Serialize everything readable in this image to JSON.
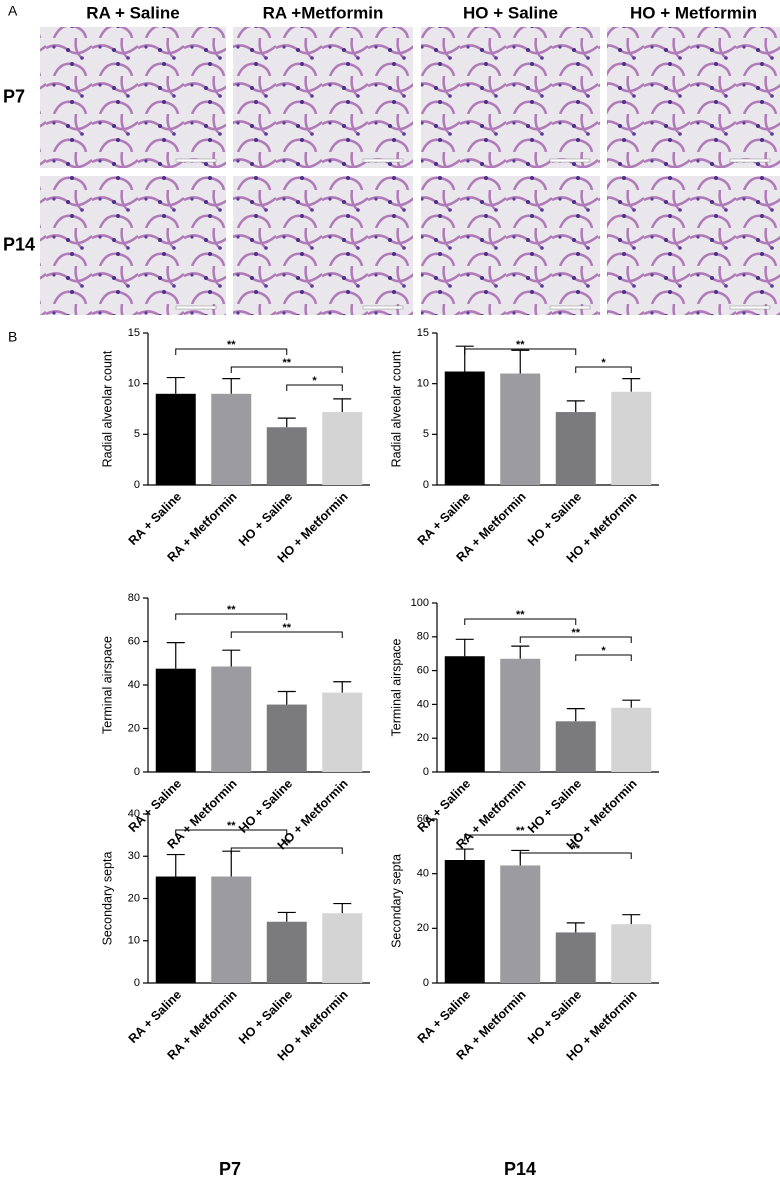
{
  "panel_a": {
    "label": "A",
    "columns": [
      "RA + Saline",
      "RA +Metformin",
      "HO + Saline",
      "HO + Metformin"
    ],
    "rows": [
      "P7",
      "P14"
    ]
  },
  "panel_b": {
    "label": "B",
    "column_labels": [
      "P7",
      "P14"
    ]
  },
  "chart_data": [
    {
      "type": "bar",
      "y_label": "Radial alveolar count",
      "categories": [
        "RA + Saline",
        "RA + Metformin",
        "HO + Saline",
        "HO + Metformin"
      ],
      "values": [
        9.0,
        9.0,
        5.7,
        7.2
      ],
      "errors": [
        1.6,
        1.5,
        0.9,
        1.3
      ],
      "colors": [
        "#000000",
        "#9b9ba0",
        "#7b7b7d",
        "#d4d4d4"
      ],
      "ylim": [
        0,
        15
      ],
      "yticks": [
        0,
        5,
        10,
        15
      ],
      "brackets": [
        {
          "between": [
            "RA + Saline",
            "HO + Saline"
          ],
          "label": "**"
        },
        {
          "between": [
            "RA + Metformin",
            "HO + Metformin"
          ],
          "label": "**"
        },
        {
          "between": [
            "HO + Saline",
            "HO + Metformin"
          ],
          "label": "*"
        }
      ]
    },
    {
      "type": "bar",
      "y_label": "Radial alveolar count",
      "categories": [
        "RA + Saline",
        "RA + Metformin",
        "HO + Saline",
        "HO + Metformin"
      ],
      "values": [
        11.2,
        11.0,
        7.2,
        9.2
      ],
      "errors": [
        2.5,
        2.3,
        1.1,
        1.3
      ],
      "colors": [
        "#000000",
        "#9b9ba0",
        "#7b7b7d",
        "#d4d4d4"
      ],
      "ylim": [
        0,
        15
      ],
      "yticks": [
        0,
        5,
        10,
        15
      ],
      "brackets": [
        {
          "between": [
            "RA + Saline",
            "HO + Saline"
          ],
          "label": "**"
        },
        {
          "between": [
            "HO + Saline",
            "HO + Metformin"
          ],
          "label": "*"
        }
      ]
    },
    {
      "type": "bar",
      "y_label": "Terminal airspace",
      "categories": [
        "RA + Saline",
        "RA + Metformin",
        "HO + Saline",
        "HO + Metformin"
      ],
      "values": [
        47.5,
        48.5,
        31,
        36.5
      ],
      "errors": [
        12,
        7.5,
        6,
        5
      ],
      "colors": [
        "#000000",
        "#9b9ba0",
        "#7b7b7d",
        "#d4d4d4"
      ],
      "ylim": [
        0,
        80
      ],
      "yticks": [
        0,
        20,
        40,
        60,
        80
      ],
      "brackets": [
        {
          "between": [
            "RA + Saline",
            "HO + Saline"
          ],
          "label": "**"
        },
        {
          "between": [
            "RA + Metformin",
            "HO + Metformin"
          ],
          "label": "**"
        }
      ]
    },
    {
      "type": "bar",
      "y_label": "Terminal airspace",
      "categories": [
        "RA + Saline",
        "RA + Metformin",
        "HO + Saline",
        "HO + Metformin"
      ],
      "values": [
        68.5,
        67,
        30,
        38
      ],
      "errors": [
        10,
        7.5,
        7.5,
        4.5
      ],
      "colors": [
        "#000000",
        "#9b9ba0",
        "#7b7b7d",
        "#d4d4d4"
      ],
      "ylim": [
        0,
        100
      ],
      "yticks": [
        0,
        20,
        40,
        60,
        80,
        100
      ],
      "brackets": [
        {
          "between": [
            "RA + Saline",
            "HO + Saline"
          ],
          "label": "**"
        },
        {
          "between": [
            "RA + Metformin",
            "HO + Metformin"
          ],
          "label": "**"
        },
        {
          "between": [
            "HO + Saline",
            "HO + Metformin"
          ],
          "label": "*"
        }
      ]
    },
    {
      "type": "bar",
      "y_label": "Secondary septa",
      "categories": [
        "RA + Saline",
        "RA + Metformin",
        "HO + Saline",
        "HO + Metformin"
      ],
      "values": [
        25.2,
        25.2,
        14.5,
        16.5
      ],
      "errors": [
        5.2,
        6,
        2.2,
        2.3
      ],
      "colors": [
        "#000000",
        "#9b9ba0",
        "#7b7b7d",
        "#d4d4d4"
      ],
      "ylim": [
        0,
        40
      ],
      "yticks": [
        0,
        10,
        20,
        30,
        40
      ],
      "brackets": [
        {
          "between": [
            "RA + Saline",
            "HO + Saline"
          ],
          "label": "**"
        },
        {
          "between": [
            "RA + Metformin",
            "HO + Metformin"
          ],
          "label": "**"
        }
      ]
    },
    {
      "type": "bar",
      "y_label": "Secondary septa",
      "categories": [
        "RA + Saline",
        "RA + Metformin",
        "HO + Saline",
        "HO + Metformin"
      ],
      "values": [
        45,
        43,
        18.5,
        21.5
      ],
      "errors": [
        4,
        5.5,
        3.5,
        3.5
      ],
      "colors": [
        "#000000",
        "#9b9ba0",
        "#7b7b7d",
        "#d4d4d4"
      ],
      "ylim": [
        0,
        60
      ],
      "yticks": [
        0,
        20,
        40,
        60
      ],
      "brackets": [
        {
          "between": [
            "RA + Saline",
            "HO + Saline"
          ],
          "label": "**"
        },
        {
          "between": [
            "RA + Metformin",
            "HO + Metformin"
          ],
          "label": "**"
        }
      ]
    }
  ]
}
